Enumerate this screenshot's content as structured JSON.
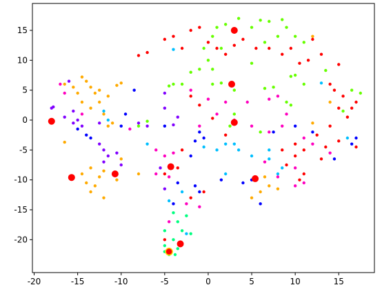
{
  "chart_data": {
    "type": "scatter",
    "xlim": [
      -20.2,
      19.1
    ],
    "ylim": [
      -25.5,
      19.5
    ],
    "xticks": [
      -20,
      -15,
      -10,
      -5,
      0,
      5,
      10,
      15
    ],
    "yticks": [
      -20,
      -15,
      -10,
      -5,
      0,
      5,
      10,
      15
    ],
    "series": [
      {
        "color": "#ffaa00",
        "size": 2.2,
        "x": [
          -16.5,
          -15.5,
          -15,
          -14.5,
          -14,
          -13.5,
          -14.5,
          -13,
          -12.5,
          -13.5,
          -11.5,
          -10,
          -10.5,
          -12,
          -11,
          -11.5,
          -16.5,
          -14.5,
          -13.5,
          -14,
          -13,
          -12.5,
          -13.5,
          -12,
          -12,
          -10.5,
          -8,
          -10,
          5,
          6,
          7,
          6.5,
          8,
          12,
          14,
          12,
          -12.5
        ],
        "values": [
          6,
          5.5,
          4.5,
          7.2,
          6.5,
          5.5,
          3,
          4.5,
          3,
          2,
          4,
          6.2,
          5.8,
          1,
          -0.5,
          -1,
          -3.7,
          -9,
          -8,
          -10.5,
          -11,
          -9.5,
          -12,
          -13,
          -8.5,
          -10,
          -9,
          -6.5,
          -13,
          -12,
          -11,
          -9.5,
          -11.5,
          -0.5,
          3,
          14,
          5
        ]
      },
      {
        "color": "#8000ff",
        "size": 2.2,
        "x": [
          -18,
          -17.8,
          -16.5,
          -15.5,
          -15.5,
          -14.5,
          -15,
          -12.5,
          -11.5,
          -12,
          -10,
          -10.5,
          -12,
          -7,
          -5,
          -5,
          -3.5,
          -4,
          -8,
          -12.5,
          -16,
          -5,
          -5.5
        ],
        "values": [
          2,
          2.2,
          0.5,
          1.5,
          -0.5,
          -1,
          0,
          -4,
          -6,
          -7,
          -7.5,
          -5.5,
          -5,
          -1,
          4.5,
          2,
          0.5,
          -0.8,
          -0.5,
          -0.5,
          6.5,
          -11.5,
          -8
        ]
      },
      {
        "color": "#0000ff",
        "size": 2.2,
        "x": [
          -14,
          -13.5,
          -15,
          -9.5,
          -10,
          -5,
          -2,
          -1.5,
          -0.5,
          -1,
          -4,
          -3.5,
          -1.5,
          -1,
          1.5,
          4,
          5,
          6,
          7.5,
          10,
          12,
          14.5,
          16.5,
          17,
          -8.5
        ],
        "values": [
          -2.5,
          -3,
          -1.5,
          1,
          -1,
          -1,
          -6,
          -3.5,
          -3,
          -2,
          -14,
          -10.5,
          -11,
          -12,
          -10,
          -10.5,
          -10,
          -14,
          -2,
          -1,
          -2,
          -6.5,
          -4,
          -3,
          5
        ]
      },
      {
        "color": "#00bfff",
        "size": 2.2,
        "x": [
          -12,
          -11.5,
          -7,
          -4,
          1,
          2,
          3,
          3.5,
          5,
          7,
          8,
          8.5,
          -3,
          -4.5,
          -2.5,
          2,
          13,
          16,
          -0.5,
          7
        ],
        "values": [
          1.5,
          0,
          -4,
          11.8,
          -5,
          -4,
          -4,
          -5,
          -6,
          -6.5,
          -9,
          -8,
          -12,
          -13.5,
          -19,
          -9,
          6.2,
          -3,
          -4.5,
          -5
        ]
      },
      {
        "color": "#00ff80",
        "size": 2.2,
        "x": [
          -5,
          -3.5,
          -3,
          -4,
          -3.5,
          -5,
          -2.5,
          -4,
          -2,
          -3.8,
          -4.5,
          -5
        ],
        "values": [
          -18.5,
          -17,
          -18.5,
          -20,
          -21.5,
          -21,
          -16,
          -15.5,
          -19,
          -22.5,
          -22.5,
          -22
        ]
      },
      {
        "color": "#66ff00",
        "size": 2.2,
        "x": [
          2,
          3.5,
          5,
          6,
          7,
          8.5,
          9,
          10,
          11,
          8,
          6.5,
          1,
          0.5,
          -0.5,
          0,
          -1,
          -2,
          -3,
          -4,
          -4.5,
          -8,
          -7,
          0.5,
          1.5,
          0.5,
          2.5,
          3,
          6.5,
          7.5,
          9.5,
          10,
          11,
          13.5,
          15.5,
          16.5,
          17.5,
          3,
          9,
          9.5,
          6,
          1.5,
          5
        ],
        "values": [
          16,
          17,
          15.5,
          16.7,
          16.5,
          16.8,
          15.5,
          14,
          13,
          14,
          13,
          15.5,
          14,
          12,
          10,
          8.5,
          8,
          6,
          6,
          5.7,
          -1,
          -0.2,
          8.5,
          6.2,
          6,
          -1,
          1,
          5.3,
          5.5,
          7.3,
          7.5,
          6,
          8.3,
          1.5,
          5,
          4.5,
          5,
          3,
          2.5,
          -2,
          12,
          9.5
        ]
      },
      {
        "color": "#ff0000",
        "size": 2.2,
        "x": [
          -8,
          -7,
          -5,
          -4,
          -2,
          -1,
          0,
          1,
          2,
          3,
          -3,
          4,
          5.5,
          7,
          8.5,
          9.5,
          10.5,
          11.5,
          12,
          13,
          15,
          14,
          14.5,
          15.5,
          15,
          16,
          16.5,
          17,
          14,
          12.5,
          15,
          10,
          11,
          13,
          13.5,
          17,
          9,
          8.5,
          10,
          -2,
          -1,
          0.5,
          2,
          -3,
          -3.5,
          -5,
          -2,
          -0.5,
          -5,
          10.5,
          11
        ],
        "values": [
          10.8,
          11.3,
          13.5,
          14,
          15,
          15.5,
          13,
          12,
          11,
          12.5,
          12,
          13.5,
          12,
          12,
          11,
          12,
          9.5,
          10,
          13.5,
          11,
          9.3,
          6,
          5,
          4,
          2,
          0.5,
          2,
          3,
          -1,
          -2.5,
          -3.5,
          -4,
          -5,
          -6.5,
          -4.5,
          -4.5,
          -7.5,
          -5,
          -6,
          4,
          2.5,
          0.3,
          -2.5,
          -5,
          -8,
          -9,
          -13,
          -12,
          -20,
          -10,
          -9
        ]
      },
      {
        "color": "#ff00bf",
        "size": 2.2,
        "x": [
          -17,
          -16.5,
          -14.5,
          -9,
          -6,
          -4,
          -5,
          -4.5,
          -6,
          -2.5,
          -4.5,
          -1,
          -2,
          -1,
          0,
          1,
          2,
          3,
          4.5,
          7,
          8,
          5,
          7,
          8.5,
          9,
          11,
          6.5,
          8,
          10,
          11,
          10,
          12,
          14
        ],
        "values": [
          6,
          4.5,
          1,
          -1.5,
          -5,
          -5.5,
          -6,
          -9.5,
          -9,
          -14,
          -17,
          -14.5,
          5,
          -1,
          3.5,
          1,
          3,
          0,
          3,
          3.5,
          4,
          -1,
          -2,
          -1,
          1,
          -3,
          -7,
          -9.5,
          -8,
          -10.5,
          -11,
          -4,
          -5.5
        ]
      },
      {
        "color": "#ff0000",
        "size": 5,
        "x": [
          -18,
          -15.7,
          -10.7,
          -4.3,
          -3.2,
          3,
          2.7,
          3,
          5.4
        ],
        "values": [
          -0.2,
          -9.6,
          -9,
          -7.8,
          -20.7,
          15,
          6,
          -0.4,
          -9.8
        ]
      },
      {
        "color": "#ff0000",
        "edgecolor": "#ffd700",
        "size": 5,
        "x": [
          -4.5
        ],
        "values": [
          -22
        ]
      }
    ]
  }
}
